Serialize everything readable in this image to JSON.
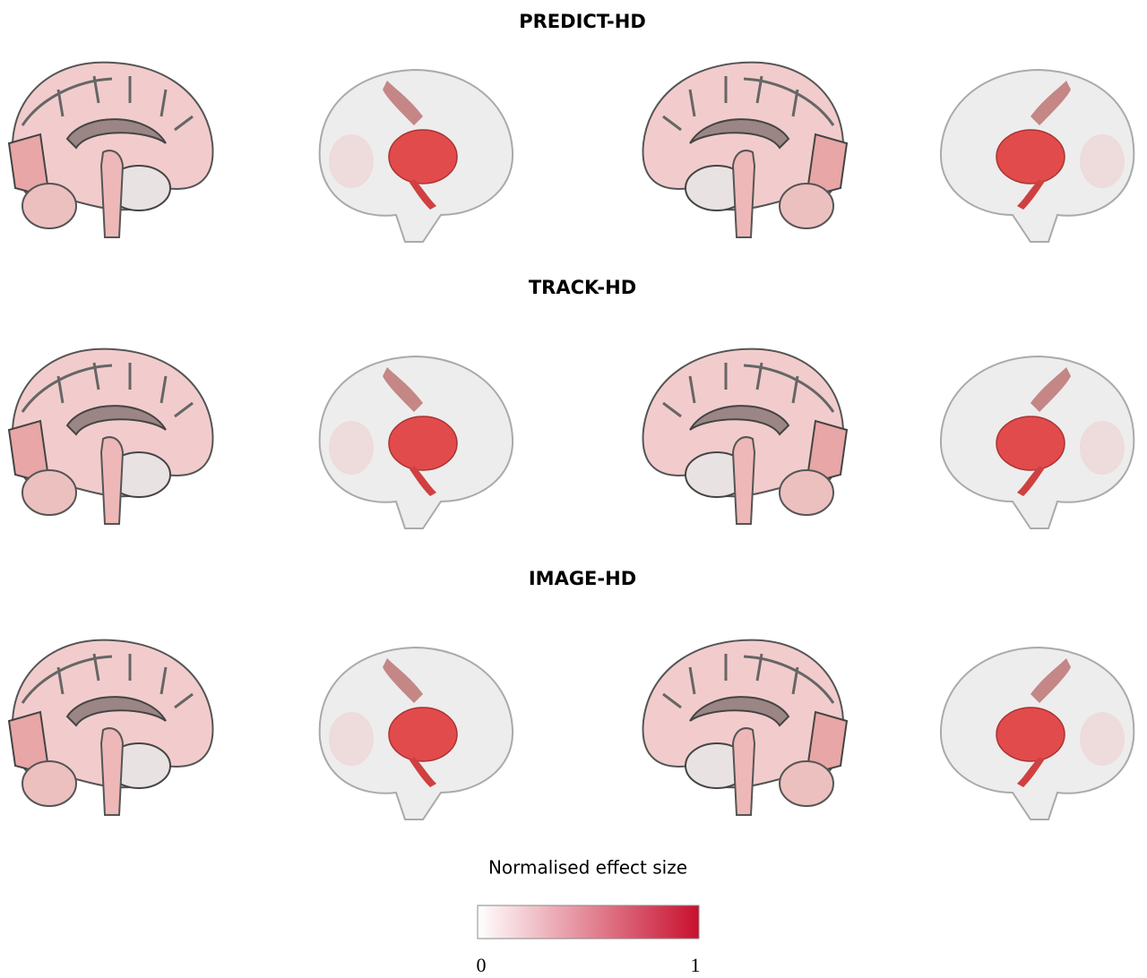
{
  "panels": [
    {
      "title": "PREDICT-HD"
    },
    {
      "title": "TRACK-HD"
    },
    {
      "title": "IMAGE-HD"
    }
  ],
  "colorbar": {
    "label": "Normalised effect size",
    "range": [
      0,
      1
    ],
    "ticks": [
      0,
      1
    ],
    "colors": [
      "#ffffff",
      "#c8102e"
    ]
  }
}
